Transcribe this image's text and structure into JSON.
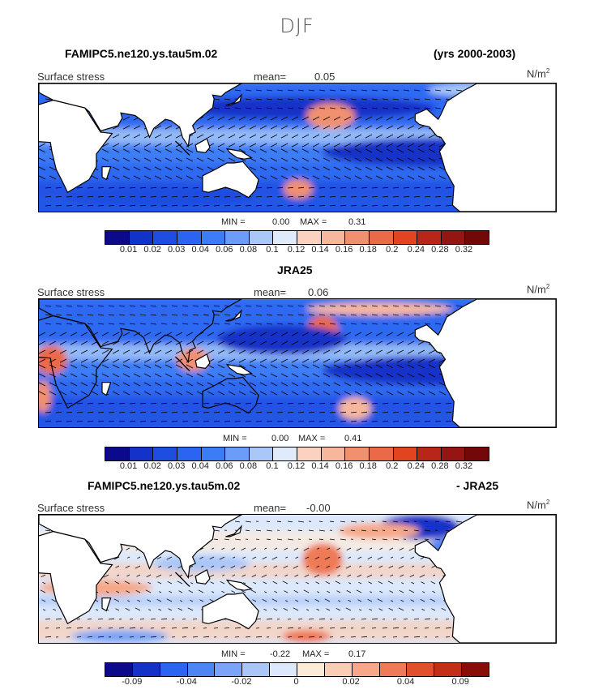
{
  "figure_title": "DJF",
  "units_label": "N/m",
  "units_exp": "2",
  "chart_data": [
    {
      "type": "heatmap",
      "title": "FAMIPC5.ne120.ys.tau5m.02",
      "title_right": "(yrs 2000-2003)",
      "field_label": "Surface stress",
      "mean_label": "mean=",
      "mean_value": "0.05",
      "min_label": "MIN =",
      "min_value": "0.00",
      "max_label": "MAX =",
      "max_value": "0.31",
      "colorbar_ticks": [
        "0.01",
        "0.02",
        "0.03",
        "0.04",
        "0.06",
        "0.08",
        "0.1",
        "0.12",
        "0.14",
        "0.16",
        "0.18",
        "0.2",
        "0.24",
        "0.28",
        "0.32"
      ],
      "colorbar_colors": [
        "#0a0a8a",
        "#1232c8",
        "#1e4ee0",
        "#2a64f0",
        "#3c7df7",
        "#6a9cf8",
        "#a9c8f8",
        "#dfeafa",
        "#fbd2c0",
        "#f6b79d",
        "#f0906e",
        "#ea6a48",
        "#e04421",
        "#b8261a",
        "#951512",
        "#730808"
      ]
    },
    {
      "type": "heatmap",
      "title": "JRA25",
      "field_label": "Surface stress",
      "mean_label": "mean=",
      "mean_value": "0.06",
      "min_label": "MIN =",
      "min_value": "0.00",
      "max_label": "MAX =",
      "max_value": "0.41",
      "colorbar_ticks": [
        "0.01",
        "0.02",
        "0.03",
        "0.04",
        "0.06",
        "0.08",
        "0.1",
        "0.12",
        "0.14",
        "0.16",
        "0.18",
        "0.2",
        "0.24",
        "0.28",
        "0.32"
      ],
      "colorbar_colors": [
        "#0a0a8a",
        "#1232c8",
        "#1e4ee0",
        "#2a64f0",
        "#3c7df7",
        "#6a9cf8",
        "#a9c8f8",
        "#dfeafa",
        "#fbd2c0",
        "#f6b79d",
        "#f0906e",
        "#ea6a48",
        "#e04421",
        "#b8261a",
        "#951512",
        "#730808"
      ]
    },
    {
      "type": "heatmap",
      "title": "FAMIPC5.ne120.ys.tau5m.02",
      "title_right": "- JRA25",
      "field_label": "Surface stress",
      "mean_label": "mean=",
      "mean_value": "-0.00",
      "min_label": "MIN =",
      "min_value": "-0.22",
      "max_label": "MAX =",
      "max_value": "0.17",
      "colorbar_ticks": [
        "-0.09",
        "-0.04",
        "-0.02",
        "0",
        "0.02",
        "0.04",
        "0.09"
      ],
      "colorbar_colors": [
        "#0a0a8a",
        "#1232c8",
        "#2a64f0",
        "#4d85f4",
        "#7aa4f6",
        "#aac6f8",
        "#dce8fb",
        "#fdebd8",
        "#fbcdb4",
        "#f6a888",
        "#ee7a57",
        "#e14f2c",
        "#c42d18",
        "#8a0d08"
      ]
    }
  ]
}
